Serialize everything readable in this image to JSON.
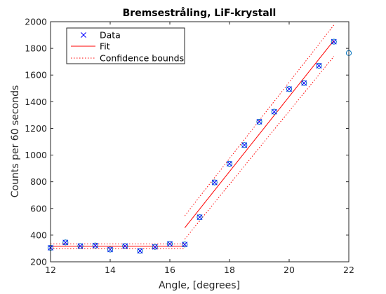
{
  "chart_data": {
    "type": "scatter",
    "title": "Bremsestråling, LiF-krystall",
    "xlabel": "Angle, [degrees]",
    "ylabel": "Counts per 60 seconds",
    "xlim": [
      12,
      22
    ],
    "ylim": [
      200,
      2000
    ],
    "xticks": [
      12,
      14,
      16,
      18,
      20,
      22
    ],
    "yticks": [
      200,
      400,
      600,
      800,
      1000,
      1200,
      1400,
      1600,
      1800,
      2000
    ],
    "grid": false,
    "legend_position": "top-left",
    "legend": [
      {
        "label": "Data",
        "marker": "x",
        "color": "#0000ff"
      },
      {
        "label": "Fit",
        "line": "solid",
        "color": "#ff0000"
      },
      {
        "label": "Confidence bounds",
        "line": "dotted",
        "color": "#ff0000"
      }
    ],
    "series": [
      {
        "name": "Data",
        "marker": "x",
        "color": "#0000ff",
        "x": [
          12,
          12.5,
          13,
          13.5,
          14,
          14.5,
          15,
          15.5,
          16,
          16.5,
          17,
          17.5,
          18,
          18.5,
          19,
          19.5,
          20,
          20.5,
          21,
          21.5
        ],
        "y": [
          305,
          345,
          318,
          322,
          292,
          318,
          282,
          312,
          335,
          330,
          535,
          795,
          935,
          1075,
          1250,
          1325,
          1495,
          1540,
          1670,
          1850
        ]
      },
      {
        "name": "Fit",
        "line": "solid",
        "color": "#ff0000",
        "segments": [
          {
            "x": [
              12,
              16.5
            ],
            "y": [
              316,
              316
            ]
          },
          {
            "x": [
              16.5,
              21.5
            ],
            "y": [
              455,
              1860
            ]
          }
        ]
      },
      {
        "name": "Confidence bounds",
        "line": "dotted",
        "color": "#ff0000",
        "segments": [
          {
            "x": [
              12,
              16.5
            ],
            "y": [
              334,
              334
            ]
          },
          {
            "x": [
              12,
              16.5
            ],
            "y": [
              298,
              298
            ]
          },
          {
            "x": [
              16.5,
              21.5
            ],
            "y": [
              545,
              1975
            ]
          },
          {
            "x": [
              16.5,
              21.5
            ],
            "y": [
              370,
              1740
            ]
          }
        ]
      }
    ],
    "unfitted_points": {
      "marker": "circle",
      "color": "#0072bd",
      "x": [
        12,
        12.5,
        13,
        13.5,
        14,
        14.5,
        15,
        15.5,
        16,
        16.5,
        17,
        17.5,
        18,
        18.5,
        19,
        19.5,
        20,
        20.5,
        21,
        21.5,
        22
      ],
      "y": [
        305,
        345,
        318,
        322,
        292,
        318,
        282,
        312,
        335,
        330,
        535,
        795,
        935,
        1075,
        1250,
        1325,
        1495,
        1540,
        1670,
        1850,
        1765
      ]
    }
  }
}
